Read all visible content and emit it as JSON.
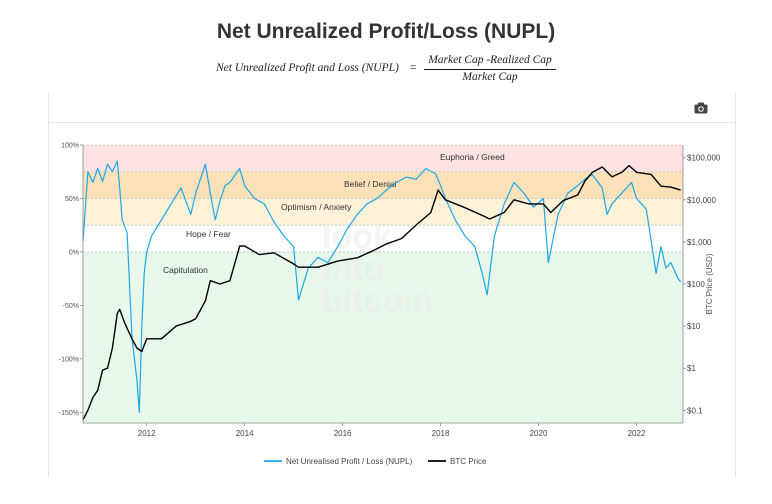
{
  "page": {
    "title": "Net Unrealized Profit/Loss (NUPL)",
    "formula": {
      "lhs": "Net Unrealized Profit and Loss (NUPL)",
      "eq": "=",
      "numerator": "Market Cap -Realized Cap",
      "denominator": "Market Cap"
    },
    "watermark": [
      "look",
      "into",
      "bitcoin"
    ],
    "camera_icon": "camera-icon"
  },
  "chart_data": {
    "type": "line",
    "xlim": [
      2010.7,
      2022.95
    ],
    "x_ticks": [
      "2012",
      "2014",
      "2016",
      "2018",
      "2020",
      "2022"
    ],
    "y_left": {
      "label": "",
      "ticks": [
        "100%",
        "50%",
        "0%",
        "-50%",
        "-100%",
        "-150%"
      ],
      "ylim": [
        -1.6,
        1.0
      ]
    },
    "y_right": {
      "label": "BTC Price (USD)",
      "scale": "log",
      "ticks": [
        "$100,000",
        "$10,000",
        "$1,000",
        "$100",
        "$10",
        "$1",
        "$0.1"
      ],
      "ylim": [
        0.05,
        200000
      ]
    },
    "zones": [
      {
        "label": "Euphoria / Greed",
        "from": 0.75,
        "to": 1.0,
        "color": "#fde2e2"
      },
      {
        "label": "Belief / Denial",
        "from": 0.5,
        "to": 0.75,
        "color": "#fde1b8"
      },
      {
        "label": "Optimism / Anxiety",
        "from": 0.25,
        "to": 0.5,
        "color": "#fdf1d8"
      },
      {
        "label": "Hope / Fear",
        "from": 0.0,
        "to": 0.25,
        "color": "#ffffff"
      },
      {
        "label": "Capitulation",
        "from": -1.6,
        "to": 0.0,
        "color": "#e7f7ea"
      }
    ],
    "series": [
      {
        "name": "Net Unrealised Profit / Loss (NUPL)",
        "color": "#1ea7e6",
        "axis": "left",
        "x": [
          2010.7,
          2010.8,
          2010.9,
          2011.0,
          2011.1,
          2011.2,
          2011.3,
          2011.4,
          2011.45,
          2011.5,
          2011.6,
          2011.7,
          2011.8,
          2011.85,
          2011.9,
          2011.95,
          2012.0,
          2012.1,
          2012.3,
          2012.5,
          2012.7,
          2012.9,
          2013.0,
          2013.2,
          2013.3,
          2013.4,
          2013.5,
          2013.6,
          2013.7,
          2013.9,
          2014.0,
          2014.2,
          2014.4,
          2014.6,
          2014.8,
          2015.0,
          2015.1,
          2015.3,
          2015.5,
          2015.7,
          2015.9,
          2016.1,
          2016.3,
          2016.5,
          2016.7,
          2016.9,
          2017.1,
          2017.3,
          2017.5,
          2017.7,
          2017.9,
          2018.0,
          2018.1,
          2018.3,
          2018.5,
          2018.7,
          2018.85,
          2018.95,
          2019.1,
          2019.3,
          2019.5,
          2019.7,
          2019.9,
          2020.1,
          2020.2,
          2020.4,
          2020.6,
          2020.8,
          2021.0,
          2021.1,
          2021.3,
          2021.4,
          2021.5,
          2021.7,
          2021.9,
          2022.0,
          2022.2,
          2022.4,
          2022.5,
          2022.6,
          2022.7,
          2022.8,
          2022.85,
          2022.9
        ],
        "values": [
          0.1,
          0.75,
          0.65,
          0.78,
          0.66,
          0.82,
          0.75,
          0.85,
          0.6,
          0.3,
          0.18,
          -0.8,
          -1.2,
          -1.5,
          -0.7,
          -0.2,
          0.0,
          0.15,
          0.3,
          0.45,
          0.6,
          0.35,
          0.55,
          0.82,
          0.55,
          0.3,
          0.48,
          0.62,
          0.65,
          0.78,
          0.62,
          0.5,
          0.45,
          0.28,
          0.15,
          0.05,
          -0.45,
          -0.15,
          -0.05,
          -0.1,
          0.05,
          0.22,
          0.35,
          0.45,
          0.5,
          0.58,
          0.65,
          0.7,
          0.68,
          0.78,
          0.73,
          0.62,
          0.5,
          0.3,
          0.15,
          0.05,
          -0.2,
          -0.4,
          0.15,
          0.45,
          0.65,
          0.55,
          0.42,
          0.5,
          -0.1,
          0.35,
          0.55,
          0.62,
          0.7,
          0.72,
          0.6,
          0.35,
          0.45,
          0.55,
          0.65,
          0.5,
          0.4,
          -0.2,
          0.05,
          -0.15,
          -0.1,
          -0.2,
          -0.25,
          -0.28
        ]
      },
      {
        "name": "BTC Price",
        "color": "#000000",
        "axis": "right",
        "x": [
          2010.7,
          2010.8,
          2010.9,
          2011.0,
          2011.1,
          2011.2,
          2011.3,
          2011.4,
          2011.45,
          2011.55,
          2011.7,
          2011.8,
          2011.9,
          2012.0,
          2012.3,
          2012.6,
          2012.9,
          2013.0,
          2013.2,
          2013.3,
          2013.5,
          2013.7,
          2013.9,
          2014.0,
          2014.3,
          2014.6,
          2014.9,
          2015.0,
          2015.1,
          2015.5,
          2015.9,
          2016.3,
          2016.6,
          2016.9,
          2017.2,
          2017.5,
          2017.8,
          2017.95,
          2018.1,
          2018.5,
          2018.9,
          2019.0,
          2019.3,
          2019.5,
          2019.8,
          2020.1,
          2020.25,
          2020.5,
          2020.8,
          2020.95,
          2021.1,
          2021.3,
          2021.5,
          2021.7,
          2021.85,
          2022.0,
          2022.3,
          2022.5,
          2022.7,
          2022.9
        ],
        "values": [
          0.06,
          0.1,
          0.2,
          0.3,
          0.9,
          1.0,
          3,
          20,
          25,
          12,
          5,
          3,
          2.5,
          5,
          5,
          10,
          13,
          15,
          40,
          120,
          100,
          120,
          800,
          800,
          500,
          550,
          350,
          300,
          250,
          250,
          350,
          420,
          600,
          900,
          1200,
          2500,
          5000,
          17000,
          10000,
          6500,
          4000,
          3500,
          5000,
          10000,
          8000,
          8000,
          5000,
          9500,
          13000,
          28000,
          45000,
          60000,
          35000,
          45000,
          65000,
          45000,
          40000,
          21000,
          20000,
          17000
        ]
      }
    ],
    "legend": {
      "placement": "bottom-center",
      "entries": [
        "Net Unrealised Profit / Loss (NUPL)",
        "BTC Price"
      ]
    }
  }
}
